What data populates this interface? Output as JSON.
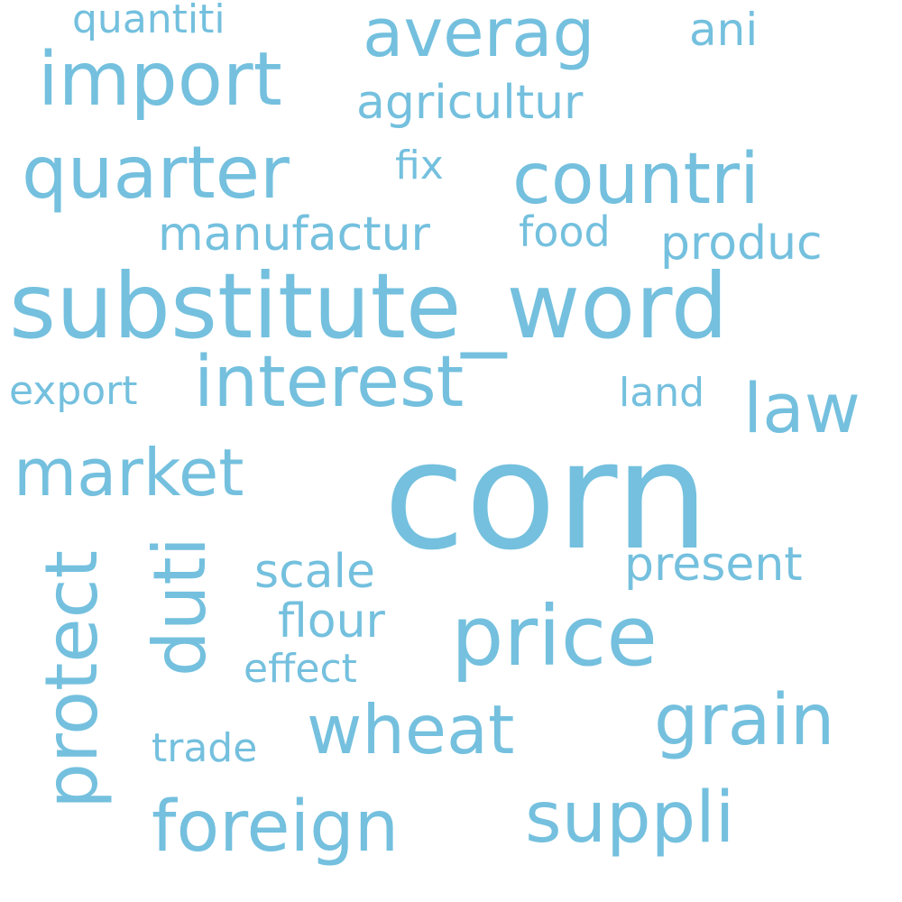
{
  "word_cloud": {
    "color": "#74C0DE",
    "words": [
      {
        "key": "corn",
        "text": "corn"
      },
      {
        "key": "substitute_word",
        "text": "substitute_word"
      },
      {
        "key": "countri",
        "text": "countri"
      },
      {
        "key": "import",
        "text": "import"
      },
      {
        "key": "averag",
        "text": "averag"
      },
      {
        "key": "quarter",
        "text": "quarter"
      },
      {
        "key": "price",
        "text": "price"
      },
      {
        "key": "interest",
        "text": "interest"
      },
      {
        "key": "law",
        "text": "law"
      },
      {
        "key": "market",
        "text": "market"
      },
      {
        "key": "protect",
        "text": "protect"
      },
      {
        "key": "duti",
        "text": "duti"
      },
      {
        "key": "wheat",
        "text": "wheat"
      },
      {
        "key": "foreign",
        "text": "foreign"
      },
      {
        "key": "suppli",
        "text": "suppli"
      },
      {
        "key": "grain",
        "text": "grain"
      },
      {
        "key": "agricultur",
        "text": "agricultur"
      },
      {
        "key": "produc",
        "text": "produc"
      },
      {
        "key": "manufactur",
        "text": "manufactur"
      },
      {
        "key": "food",
        "text": "food"
      },
      {
        "key": "present",
        "text": "present"
      },
      {
        "key": "scale",
        "text": "scale"
      },
      {
        "key": "flour",
        "text": "flour"
      },
      {
        "key": "quantiti",
        "text": "quantiti"
      },
      {
        "key": "ani",
        "text": "ani"
      },
      {
        "key": "fix",
        "text": "fix"
      },
      {
        "key": "export",
        "text": "export"
      },
      {
        "key": "land",
        "text": "land"
      },
      {
        "key": "effect",
        "text": "effect"
      },
      {
        "key": "trade",
        "text": "trade"
      }
    ]
  }
}
